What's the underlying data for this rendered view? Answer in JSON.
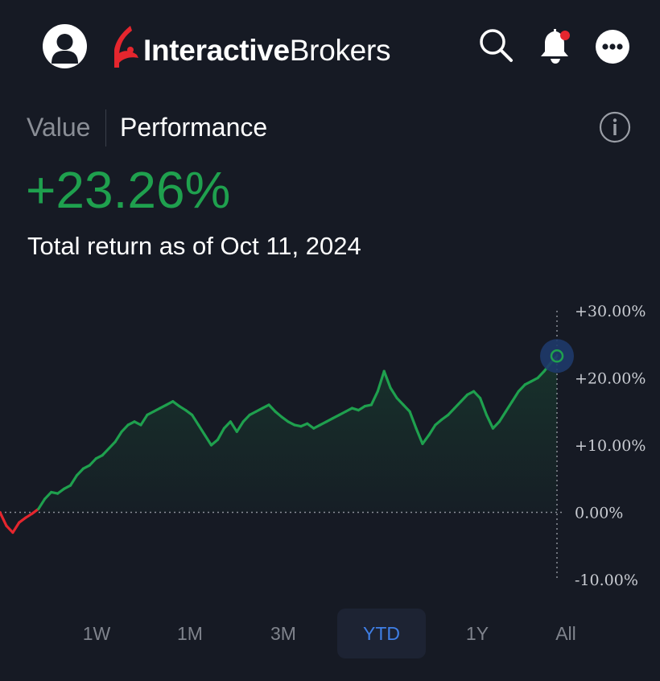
{
  "header": {
    "brand_bold": "Interactive",
    "brand_regular": "Brokers",
    "notification_dot_color": "#e5262e"
  },
  "tabs": [
    {
      "label": "Value",
      "active": false
    },
    {
      "label": "Performance",
      "active": true
    }
  ],
  "summary": {
    "total_return": "+23.26%",
    "subtitle": "Total return as of Oct 11, 2024"
  },
  "colors": {
    "positive": "#1fa04e",
    "negative": "#e5262e",
    "accent": "#3f7fe6",
    "background": "#161a24"
  },
  "chart_data": {
    "type": "line",
    "title": "",
    "xlabel": "",
    "ylabel": "",
    "ylim": [
      -10,
      30
    ],
    "yticks": [
      "+30.00%",
      "+20.00%",
      "+10.00%",
      "0.00%",
      "-10.00%"
    ],
    "ytick_values": [
      30,
      20,
      10,
      0,
      -10
    ],
    "baseline": 0,
    "grid": false,
    "legend": "none",
    "series": [
      {
        "values": [
          0.0,
          -2.0,
          -3.0,
          -1.5,
          -0.8,
          -0.2,
          0.5,
          2.0,
          3.0,
          2.8,
          3.5,
          4.0,
          5.5,
          6.5,
          7.0,
          8.0,
          8.5,
          9.5,
          10.5,
          12.0,
          13.0,
          13.5,
          13.0,
          14.5,
          15.0,
          15.5,
          16.0,
          16.5,
          15.8,
          15.2,
          14.5,
          13.0,
          11.5,
          10.0,
          10.8,
          12.5,
          13.5,
          12.0,
          13.5,
          14.5,
          15.0,
          15.5,
          16.0,
          15.0,
          14.2,
          13.5,
          13.0,
          12.8,
          13.2,
          12.5,
          13.0,
          13.5,
          14.0,
          14.5,
          15.0,
          15.5,
          15.2,
          15.8,
          16.0,
          18.0,
          21.0,
          18.5,
          17.0,
          16.0,
          15.0,
          12.5,
          10.2,
          11.5,
          13.0,
          13.8,
          14.5,
          15.5,
          16.5,
          17.5,
          18.0,
          17.0,
          14.5,
          12.5,
          13.5,
          15.0,
          16.5,
          18.0,
          19.0,
          19.5,
          20.0,
          21.0,
          22.2,
          23.26
        ],
        "line_colors": {
          "below_zero": "#e5262e",
          "above_zero": "#1fa04e"
        }
      }
    ],
    "current_point": {
      "value": 23.26
    }
  },
  "ranges": [
    {
      "label": "1W",
      "active": false
    },
    {
      "label": "1M",
      "active": false
    },
    {
      "label": "3M",
      "active": false
    },
    {
      "label": "YTD",
      "active": true
    },
    {
      "label": "1Y",
      "active": false
    },
    {
      "label": "All",
      "active": false
    }
  ]
}
